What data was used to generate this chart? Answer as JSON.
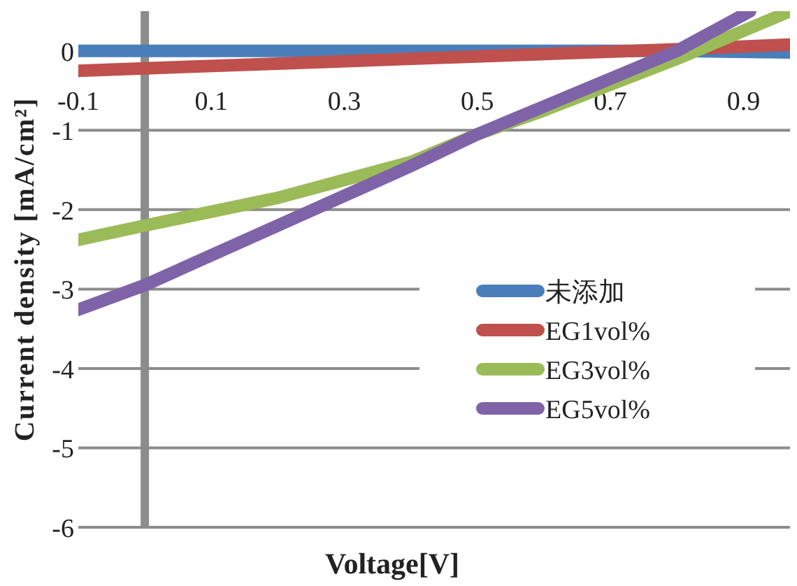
{
  "chart_data": {
    "type": "line",
    "xlabel": "Voltage[V]",
    "ylabel": "Current density [mA/cm²]",
    "x": [
      -0.1,
      0,
      0.2,
      0.4,
      0.5,
      0.6,
      0.8,
      0.97
    ],
    "series": [
      {
        "name": "未添加",
        "color": "#4a7ebb",
        "values": [
          0,
          0,
          0,
          0,
          0,
          0,
          0,
          -0.02
        ]
      },
      {
        "name": "EG1vol%",
        "color": "#c0504d",
        "values": [
          -0.25,
          -0.22,
          -0.16,
          -0.1,
          -0.07,
          -0.04,
          0.02,
          0.08
        ]
      },
      {
        "name": "EG3vol%",
        "color": "#9bbb59",
        "values": [
          -2.38,
          -2.2,
          -1.85,
          -1.4,
          -1.05,
          -0.75,
          -0.1,
          0.5
        ]
      },
      {
        "name": "EG5vol%",
        "color": "#7f63a8",
        "x": [
          -0.1,
          0,
          0.2,
          0.4,
          0.5,
          0.6,
          0.8,
          0.91
        ],
        "values": [
          -3.26,
          -2.95,
          -2.2,
          -1.45,
          -1.05,
          -0.7,
          0,
          0.5
        ]
      }
    ],
    "xlim": [
      -0.1,
      0.97
    ],
    "ylim": [
      -6,
      0.5
    ],
    "xticks": [
      -0.1,
      0.1,
      0.3,
      0.5,
      0.7,
      0.9
    ],
    "yticks": [
      -6,
      -5,
      -4,
      -3,
      -2,
      -1,
      0
    ],
    "grid": "y",
    "legend": "right"
  }
}
